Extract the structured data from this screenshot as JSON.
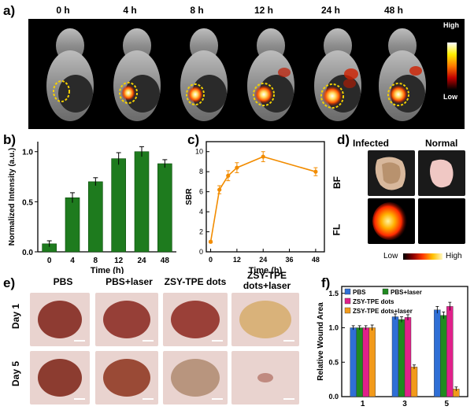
{
  "panels": {
    "a": "a)",
    "b": "b)",
    "c": "c)",
    "d": "d)",
    "e": "e)",
    "f": "f)"
  },
  "panel_a": {
    "timepoints": [
      "0 h",
      "4 h",
      "8 h",
      "12 h",
      "24 h",
      "48 h"
    ],
    "scale_high": "High",
    "scale_low": "Low"
  },
  "panel_d": {
    "col_infected": "Infected",
    "col_normal": "Normal",
    "row_bf": "BF",
    "row_fl": "FL",
    "scale_low": "Low",
    "scale_high": "High"
  },
  "panel_e": {
    "columns": [
      "PBS",
      "PBS+laser",
      "ZSY-TPE dots",
      "ZSY-TPE\ndots+laser"
    ],
    "col4_line1": "ZSY-TPE",
    "col4_line2": "dots+laser",
    "rows": [
      "Day 1",
      "Day 5"
    ]
  },
  "chart_data": [
    {
      "type": "bar",
      "ylabel": "Normalized Intensity (a.u.)",
      "xlabel": "Time (h)",
      "categories": [
        "0",
        "4",
        "8",
        "12",
        "24",
        "48"
      ],
      "values": [
        0.08,
        0.54,
        0.7,
        0.93,
        1.0,
        0.88
      ],
      "errors": [
        0.03,
        0.05,
        0.04,
        0.06,
        0.05,
        0.04
      ],
      "ylim": [
        0,
        1.1
      ],
      "yticks": [
        "0.0",
        "0.5",
        "1.0"
      ],
      "color": "#1e7b1e"
    },
    {
      "type": "line",
      "ylabel": "SBR",
      "xlabel": "Time (h)",
      "x": [
        0,
        4,
        8,
        12,
        24,
        48
      ],
      "y": [
        1.0,
        6.2,
        7.6,
        8.4,
        9.5,
        8.0
      ],
      "errors": [
        0.1,
        0.4,
        0.5,
        0.5,
        0.5,
        0.4
      ],
      "xlim": [
        -2,
        52
      ],
      "ylim": [
        0,
        11
      ],
      "xticks": [
        "0",
        "12",
        "24",
        "36",
        "48"
      ],
      "yticks": [
        "0",
        "2",
        "4",
        "6",
        "8",
        "10"
      ],
      "color": "#f28c00"
    },
    {
      "type": "bar",
      "ylabel": "Relative Wound Area",
      "xlabel": "Time (d)",
      "categories": [
        "1",
        "3",
        "5"
      ],
      "series": [
        {
          "name": "PBS",
          "values": [
            1.0,
            1.16,
            1.26
          ],
          "errors": [
            0.03,
            0.04,
            0.05
          ],
          "color": "#2f6fd6"
        },
        {
          "name": "PBS+laser",
          "values": [
            1.0,
            1.12,
            1.18
          ],
          "errors": [
            0.03,
            0.04,
            0.05
          ],
          "color": "#1f8a1f"
        },
        {
          "name": "ZSY-TPE dots",
          "values": [
            1.0,
            1.15,
            1.31
          ],
          "errors": [
            0.03,
            0.04,
            0.06
          ],
          "color": "#e0208a"
        },
        {
          "name": "ZSY-TPE dots+laser",
          "values": [
            1.0,
            0.43,
            0.11
          ],
          "errors": [
            0.04,
            0.03,
            0.03
          ],
          "color": "#f29a1a"
        }
      ],
      "ylim": [
        0,
        1.6
      ],
      "yticks": [
        "0.0",
        "0.5",
        "1.0",
        "1.5"
      ]
    }
  ]
}
